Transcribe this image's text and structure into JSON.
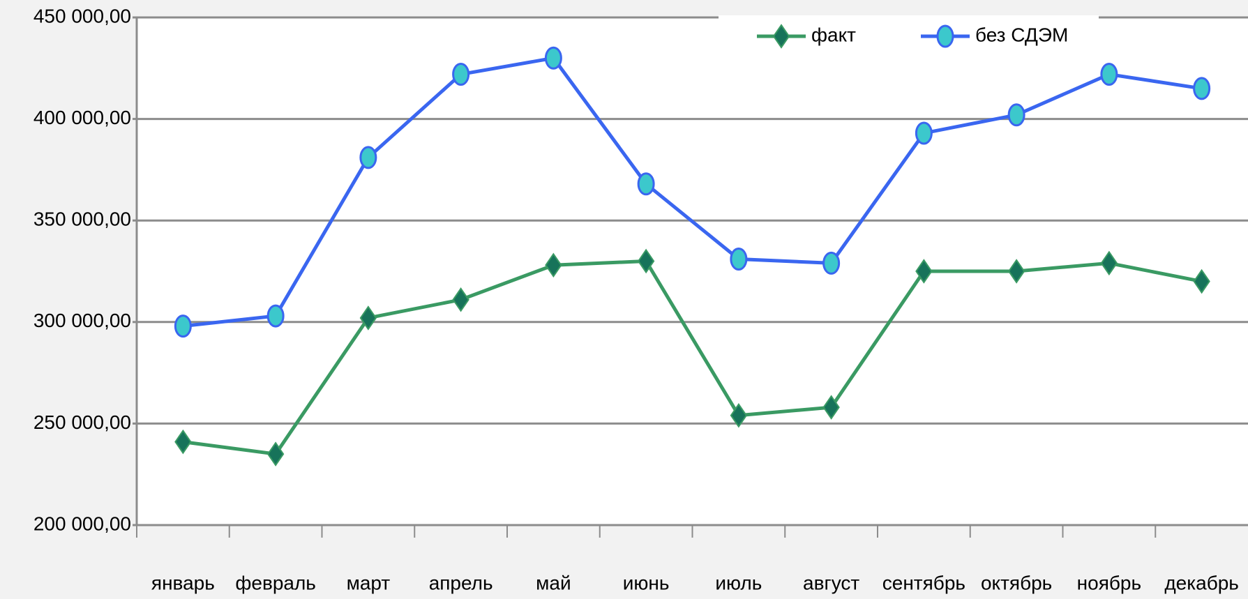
{
  "chart_data": {
    "type": "line",
    "categories": [
      "январь",
      "февраль",
      "март",
      "апрель",
      "май",
      "июнь",
      "июль",
      "август",
      "сентябрь",
      "октябрь",
      "ноябрь",
      "декабрь"
    ],
    "series": [
      {
        "name": "факт",
        "color": "#3a9a63",
        "marker": "diamond",
        "marker_color": "#17735a",
        "values": [
          241000,
          235000,
          302000,
          311000,
          328000,
          330000,
          254000,
          258000,
          325000,
          325000,
          329000,
          320000
        ]
      },
      {
        "name": "без СДЭМ",
        "color": "#3a66f0",
        "marker": "circle",
        "marker_color": "#3cc8cc",
        "values": [
          298000,
          303000,
          381000,
          422000,
          430000,
          368000,
          331000,
          329000,
          393000,
          402000,
          422000,
          415000
        ]
      }
    ],
    "ylim": [
      200000,
      450000
    ],
    "yticks": [
      {
        "value": 200000,
        "label": "200 000,00"
      },
      {
        "value": 250000,
        "label": "250 000,00"
      },
      {
        "value": 300000,
        "label": "300 000,00"
      },
      {
        "value": 350000,
        "label": "350 000,00"
      },
      {
        "value": 400000,
        "label": "400 000,00"
      },
      {
        "value": 450000,
        "label": "450 000,00"
      }
    ],
    "grid": true,
    "legend": "top"
  }
}
